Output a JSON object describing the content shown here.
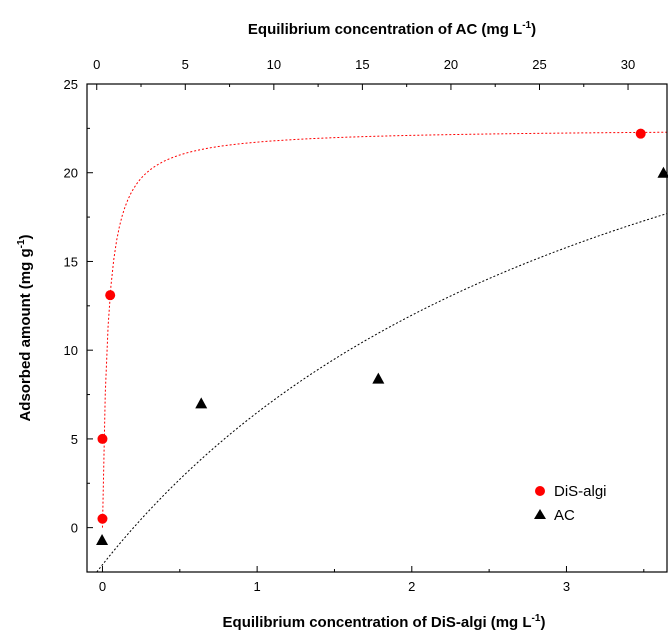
{
  "chart_data": {
    "type": "scatter",
    "title": "",
    "xlabel_bottom": "Equilibrium concentration of DiS-algi",
    "xlabel_bottom_unit_prefix": "(mg L",
    "xlabel_bottom_unit_sup": "-1",
    "xlabel_bottom_unit_suffix": ")",
    "xlabel_top": "Equilibrium concentration of AC",
    "xlabel_top_unit_prefix": "(mg L",
    "xlabel_top_unit_sup": "-1",
    "xlabel_top_unit_suffix": ")",
    "ylabel": "Adsorbed amount",
    "ylabel_unit_prefix": "(mg g",
    "ylabel_unit_sup": "-1",
    "ylabel_unit_suffix": ")",
    "xlim_bottom": [
      -0.1,
      3.65
    ],
    "xlim_top": [
      -0.55,
      32.2
    ],
    "ylim": [
      -2.5,
      25
    ],
    "xticks_bottom": [
      0,
      1,
      2,
      3
    ],
    "xticks_top": [
      0,
      5,
      10,
      15,
      20,
      25,
      30
    ],
    "yticks": [
      0,
      5,
      10,
      15,
      20,
      25
    ],
    "grid": false,
    "legend_position": "bottom-right",
    "series": [
      {
        "name": "DiS-algi",
        "axis": "bottom",
        "marker": "circle",
        "color": "#ff0000",
        "x": [
          0.0,
          0.0,
          0.05,
          3.48
        ],
        "y": [
          0.5,
          5.0,
          13.1,
          22.2
        ]
      },
      {
        "name": "AC",
        "axis": "top",
        "marker": "triangle",
        "color": "#000000",
        "x": [
          0.3,
          5.9,
          15.9,
          32.0
        ],
        "y": [
          -0.7,
          7.0,
          8.4,
          20.0
        ]
      }
    ],
    "fits": [
      {
        "for": "DiS-algi",
        "axis": "bottom",
        "color": "#ff0000",
        "qmax": 22.5,
        "K": 28.0
      },
      {
        "for": "AC",
        "axis": "top",
        "color": "#000000",
        "qmax": 37.0,
        "K": 0.0325,
        "offset": -2.5
      }
    ]
  }
}
